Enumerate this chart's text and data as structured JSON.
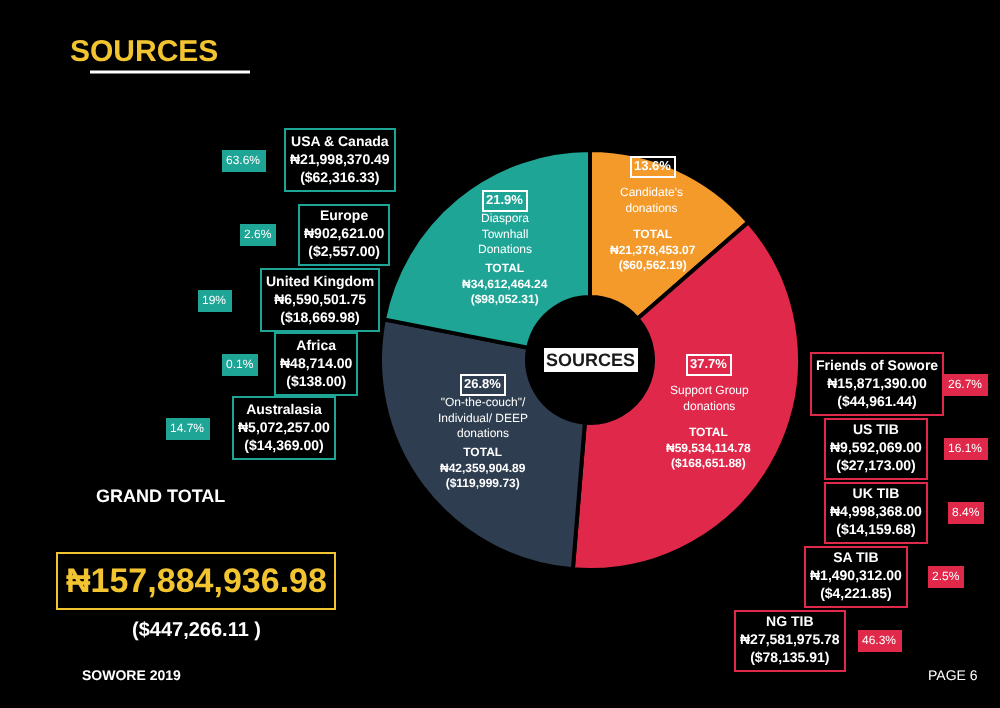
{
  "chart_data": {
    "type": "donut",
    "title": "SOURCES",
    "categories": [
      "Candidate's donations",
      "Support Group donations",
      "\"On-the-couch\"/ Individual/ DEEP donations",
      "Diaspora Townhall Donations"
    ],
    "values": [
      13.6,
      37.7,
      26.8,
      21.9
    ],
    "colors": [
      "#f39a2b",
      "#e0284a",
      "#2e3d4f",
      "#1fa596"
    ],
    "value_labels": [
      "13.6%",
      "37.7%",
      "26.8%",
      "21.9%"
    ],
    "annotations": [
      "SOURCES",
      "TOTAL\n₦21,378,453.07\n($60,562.19)",
      "TOTAL\n₦59,534,114.78\n($168,651.88)",
      "TOTAL\n₦42,359,904.89\n($119,999.73)",
      "TOTAL\n₦34,612,464.24\n($98,052.31)",
      "USA & Canada\n₦21,998,370.49\n($62,316.33)",
      "63.6%",
      "Europe\n₦902,621.00\n($2,557.00)",
      "2.6%",
      "United Kingdom\n₦6,590,501.75\n($18,669.98)",
      "19%",
      "Africa\n₦48,714.00\n($138.00)",
      "0.1%",
      "Australasia\n₦5,072,257.00\n($14,369.00)",
      "14.7%",
      "Friends of Sowore\n₦15,871,390.00\n($44,961.44)",
      "26.7%",
      "US TIB\n₦9,592,069.00\n($27,173.00)",
      "16.1%",
      "UK TIB\n₦4,998,368.00\n($14,159.68)",
      "8.4%",
      "SA TIB\n₦1,490,312.00\n($4,221.85)",
      "2.5%",
      "NG TIB\n₦27,581,975.78\n($78,135.91)",
      "46.3%",
      "GRAND TOTAL",
      "₦157,884,936.98",
      "($447,266.11 )",
      "SOWORE 2019",
      "PAGE 6"
    ]
  }
}
